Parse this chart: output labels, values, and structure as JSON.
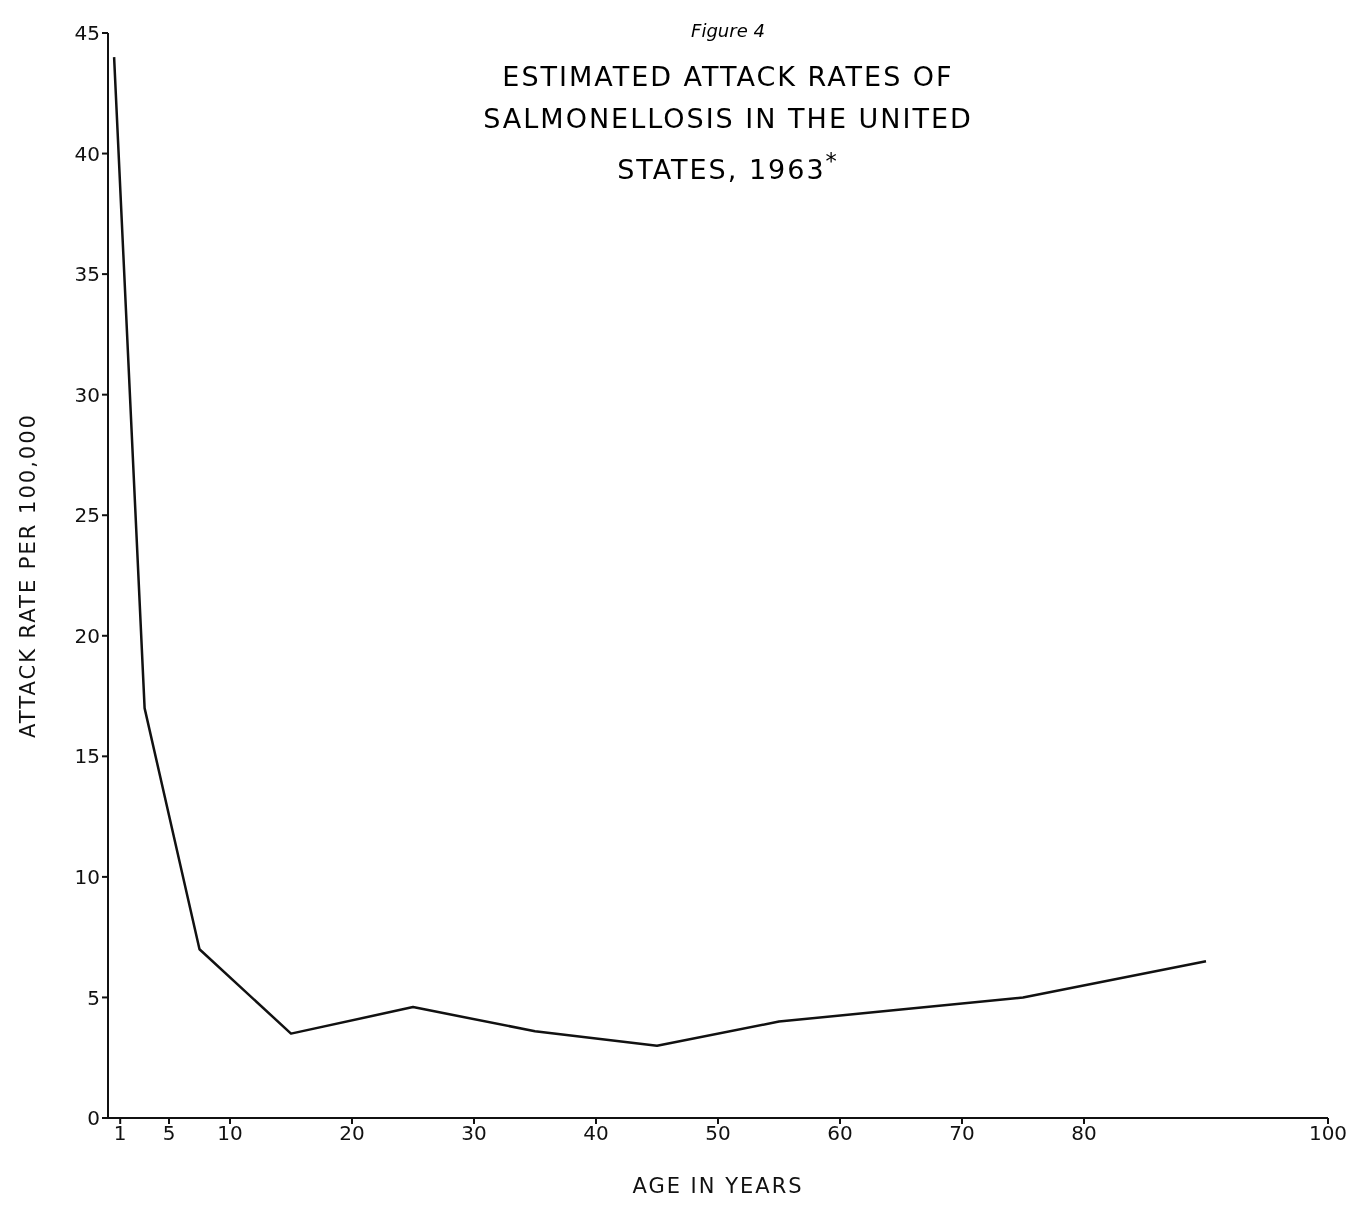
{
  "chart_data": {
    "type": "line",
    "title": "ESTIMATED ATTACK RATES OF SALMONELLOSIS IN THE UNITED STATES, 1963$^{*}$",
    "annotations": [
      "Figure 4"
    ],
    "xlabel": "AGE IN YEARS",
    "ylabel": "ATTACK RATE PER 100,000",
    "x": [
      0.5,
      3,
      7.5,
      15,
      25,
      35,
      45,
      55,
      65,
      75,
      90
    ],
    "series": [
      {
        "color": "#111111",
        "values": [
          44,
          17,
          7,
          3.5,
          4.6,
          3.6,
          3.0,
          4.0,
          4.5,
          5.0,
          6.5
        ]
      }
    ],
    "xlim": [
      0,
      100
    ],
    "xticks": [
      1,
      5,
      10,
      20,
      30,
      40,
      50,
      60,
      70,
      80,
      100
    ],
    "ylim": [
      0,
      45
    ],
    "yticks": [
      0,
      5,
      10,
      15,
      20,
      25,
      30,
      35,
      40,
      45
    ],
    "grid": false,
    "legend": false,
    "marker": "none",
    "line_style": "solid"
  }
}
